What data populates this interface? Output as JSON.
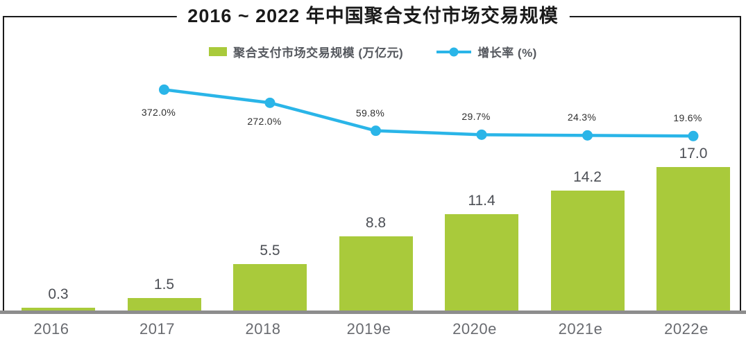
{
  "title": "2016 ~ 2022 年中国聚合支付市场交易规模",
  "legend": {
    "bar_label": "聚合支付市场交易规模 (万亿元)",
    "line_label": "增长率 (%)"
  },
  "colors": {
    "bar_green": "#a9ca3b",
    "line_blue": "#2ab5e8",
    "axis_gray": "#8d8d8d",
    "title_black": "#1a1a1a",
    "value_label_gray": "#4c4f55",
    "x_label_gray": "#696b70"
  },
  "chart_data": {
    "type": "bar",
    "title": "2016 ~ 2022 年中国聚合支付市场交易规模",
    "categories": [
      "2016",
      "2017",
      "2018",
      "2019e",
      "2020e",
      "2021e",
      "2022e"
    ],
    "series": [
      {
        "name": "聚合支付市场交易规模 (万亿元)",
        "type": "bar",
        "color": "#a9ca3b",
        "values": [
          0.3,
          1.5,
          5.5,
          8.8,
          11.4,
          14.2,
          17.0
        ],
        "labels": [
          "0.3",
          "1.5",
          "5.5",
          "8.8",
          "11.4",
          "14.2",
          "17.0"
        ]
      },
      {
        "name": "增长率 (%)",
        "type": "line",
        "color": "#2ab5e8",
        "categories": [
          "2017",
          "2018",
          "2019e",
          "2020e",
          "2021e",
          "2022e"
        ],
        "values": [
          372.0,
          272.0,
          59.8,
          29.7,
          24.3,
          19.6
        ],
        "labels": [
          "372.0%",
          "272.0%",
          "59.8%",
          "29.7%",
          "24.3%",
          "19.6%"
        ]
      }
    ],
    "ylim_bar": [
      0,
      18
    ],
    "grid": false,
    "legend_position": "top"
  }
}
